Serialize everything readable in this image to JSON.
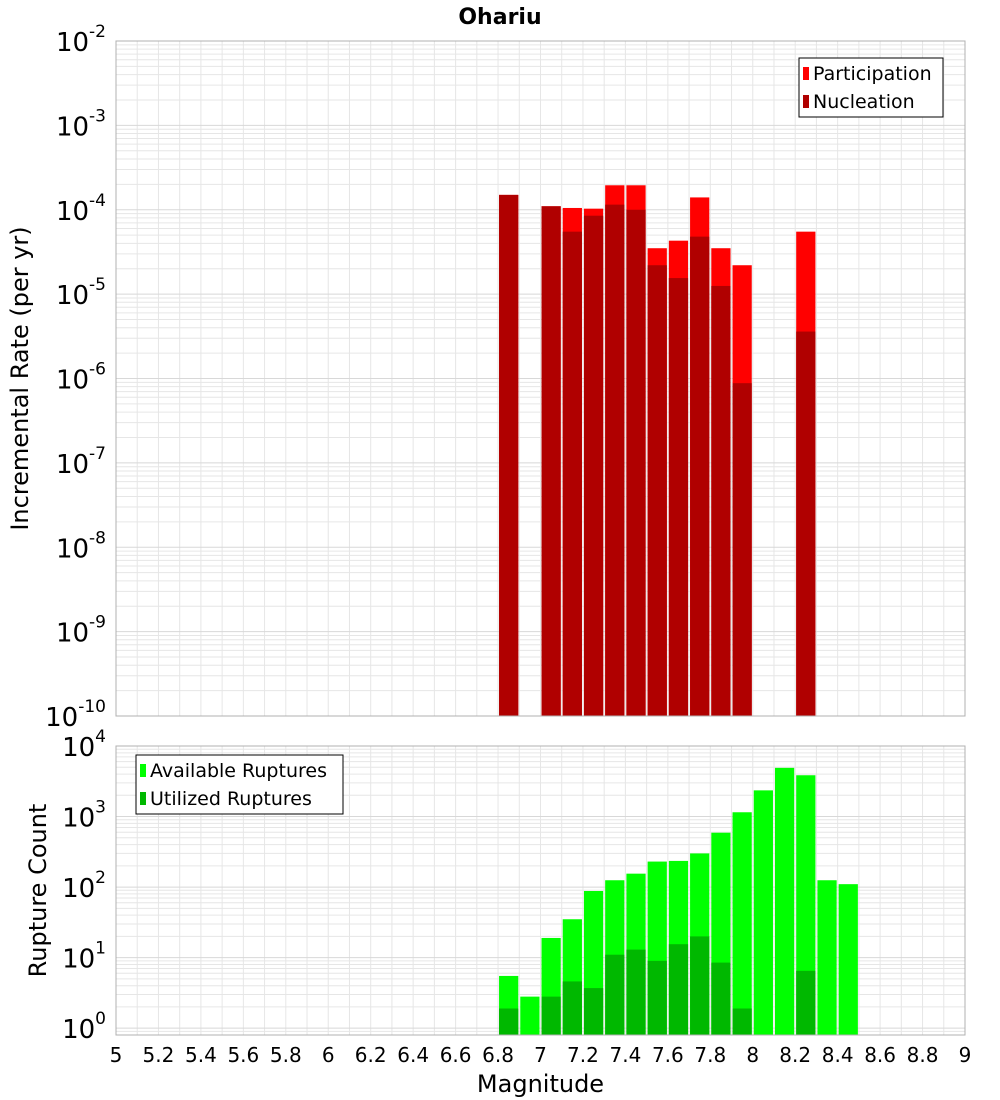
{
  "title": "Ohariu",
  "colors": {
    "participation": "#ff0000",
    "nucleation": "#b00000",
    "available": "#00ff00",
    "utilized": "#00b800",
    "grid": "#e6e6e6",
    "frame": "#b0b0b0"
  },
  "chart_data": [
    {
      "type": "bar",
      "title": "Ohariu",
      "xlabel": "",
      "ylabel": "Incremental Rate (per yr)",
      "xlim": [
        5,
        9
      ],
      "ylim": [
        1e-10,
        0.01
      ],
      "yscale": "log",
      "y_tick_exponents": [
        "-10",
        "-9",
        "-8",
        "-7",
        "-6",
        "-5",
        "-4",
        "-3",
        "-2"
      ],
      "y_tick_base": "10",
      "legend": {
        "placement": "top-right",
        "entries": [
          "Participation",
          "Nucleation"
        ]
      },
      "grid": true,
      "bin_width": 0.1,
      "x": [
        6.85,
        7.05,
        7.15,
        7.25,
        7.35,
        7.45,
        7.55,
        7.65,
        7.75,
        7.85,
        7.95,
        8.25
      ],
      "series": [
        {
          "name": "Participation",
          "values": [
            0.00015,
            0.00011,
            0.000105,
            0.000103,
            0.000195,
            0.000195,
            3.5e-05,
            4.3e-05,
            0.00014,
            3.5e-05,
            2.2e-05,
            5.5e-05
          ]
        },
        {
          "name": "Nucleation",
          "values": [
            0.00015,
            0.00011,
            5.5e-05,
            8.5e-05,
            0.000115,
            0.0001,
            2.2e-05,
            1.55e-05,
            4.8e-05,
            1.25e-05,
            8.8e-07,
            3.6e-06
          ]
        }
      ]
    },
    {
      "type": "bar",
      "title": "",
      "xlabel": "Magnitude",
      "ylabel": "Rupture Count",
      "xlim": [
        5,
        9
      ],
      "ylim": [
        0.8,
        10000.0
      ],
      "yscale": "log",
      "y_tick_exponents": [
        "0",
        "1",
        "2",
        "3",
        "4"
      ],
      "y_tick_base": "10",
      "x_ticks": [
        "5",
        "5.2",
        "5.4",
        "5.6",
        "5.8",
        "6",
        "6.2",
        "6.4",
        "6.6",
        "6.8",
        "7",
        "7.2",
        "7.4",
        "7.6",
        "7.8",
        "8",
        "8.2",
        "8.4",
        "8.6",
        "8.8",
        "9"
      ],
      "legend": {
        "placement": "top-left",
        "entries": [
          "Available Ruptures",
          "Utilized Ruptures"
        ]
      },
      "grid": true,
      "bin_width": 0.1,
      "x": [
        6.85,
        6.95,
        7.05,
        7.15,
        7.25,
        7.35,
        7.45,
        7.55,
        7.65,
        7.75,
        7.85,
        7.95,
        8.05,
        8.15,
        8.25,
        8.35,
        8.45
      ],
      "series": [
        {
          "name": "Available Ruptures",
          "values": [
            5.5,
            2.8,
            19,
            35,
            88,
            125,
            155,
            230,
            235,
            300,
            590,
            1150,
            2350,
            4900,
            3850,
            125,
            110
          ]
        },
        {
          "name": "Utilized Ruptures",
          "values": [
            1.9,
            0,
            2.8,
            4.6,
            3.7,
            11,
            13,
            9,
            15.5,
            20,
            8.5,
            1.9,
            0,
            0,
            6.5,
            0,
            0
          ]
        }
      ]
    }
  ]
}
